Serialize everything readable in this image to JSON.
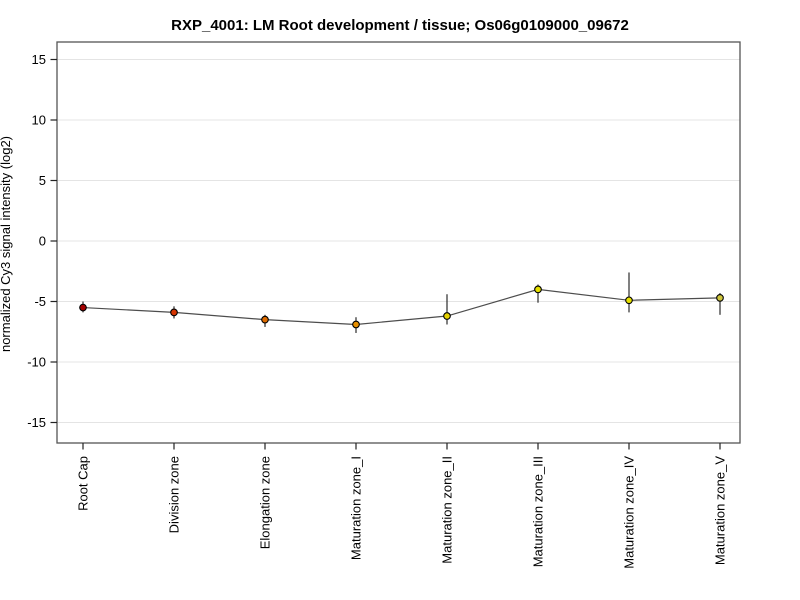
{
  "chart_data": {
    "type": "line",
    "title": "RXP_4001: LM Root development / tissue; Os06g0109000_09672",
    "xlabel": "",
    "ylabel": "normalized Cy3 signal intensity (log2)",
    "categories": [
      "Root Cap",
      "Division zone",
      "Elongation zone",
      "Maturation zone_I",
      "Maturation zone_II",
      "Maturation zone_III",
      "Maturation zone_IV",
      "Maturation zone_V"
    ],
    "series": [
      {
        "name": "normalized Cy3 signal intensity",
        "values": [
          -5.5,
          -5.9,
          -6.5,
          -6.9,
          -6.2,
          -4.0,
          -4.9,
          -4.7
        ],
        "error_high": [
          -5.0,
          -5.4,
          -6.1,
          -6.3,
          -4.4,
          -3.6,
          -2.6,
          -4.3
        ],
        "error_low": [
          -5.9,
          -6.4,
          -7.1,
          -7.6,
          -6.9,
          -5.1,
          -5.9,
          -6.1
        ],
        "point_colors": [
          "#a40000",
          "#d63400",
          "#dd6b00",
          "#e68f00",
          "#e6d200",
          "#e6e000",
          "#e6e000",
          "#cfc63d"
        ]
      }
    ],
    "ylim": [
      -16.5,
      16.5
    ],
    "yticks": [
      15,
      10,
      5,
      0,
      -5,
      -10,
      -15
    ],
    "ytick_labels": [
      "15",
      "10",
      "5",
      "0",
      "-5",
      "-10",
      "-15"
    ],
    "grid": true,
    "legend": "none",
    "colors": {
      "line": "#4d4d4d",
      "error_bar": "#2b2b2b",
      "marker_outline": "#000000",
      "plot_border": "#555555",
      "gridline": "#e4e4e4",
      "tick": "#222222",
      "text": "#000000",
      "background": "#ffffff"
    }
  }
}
